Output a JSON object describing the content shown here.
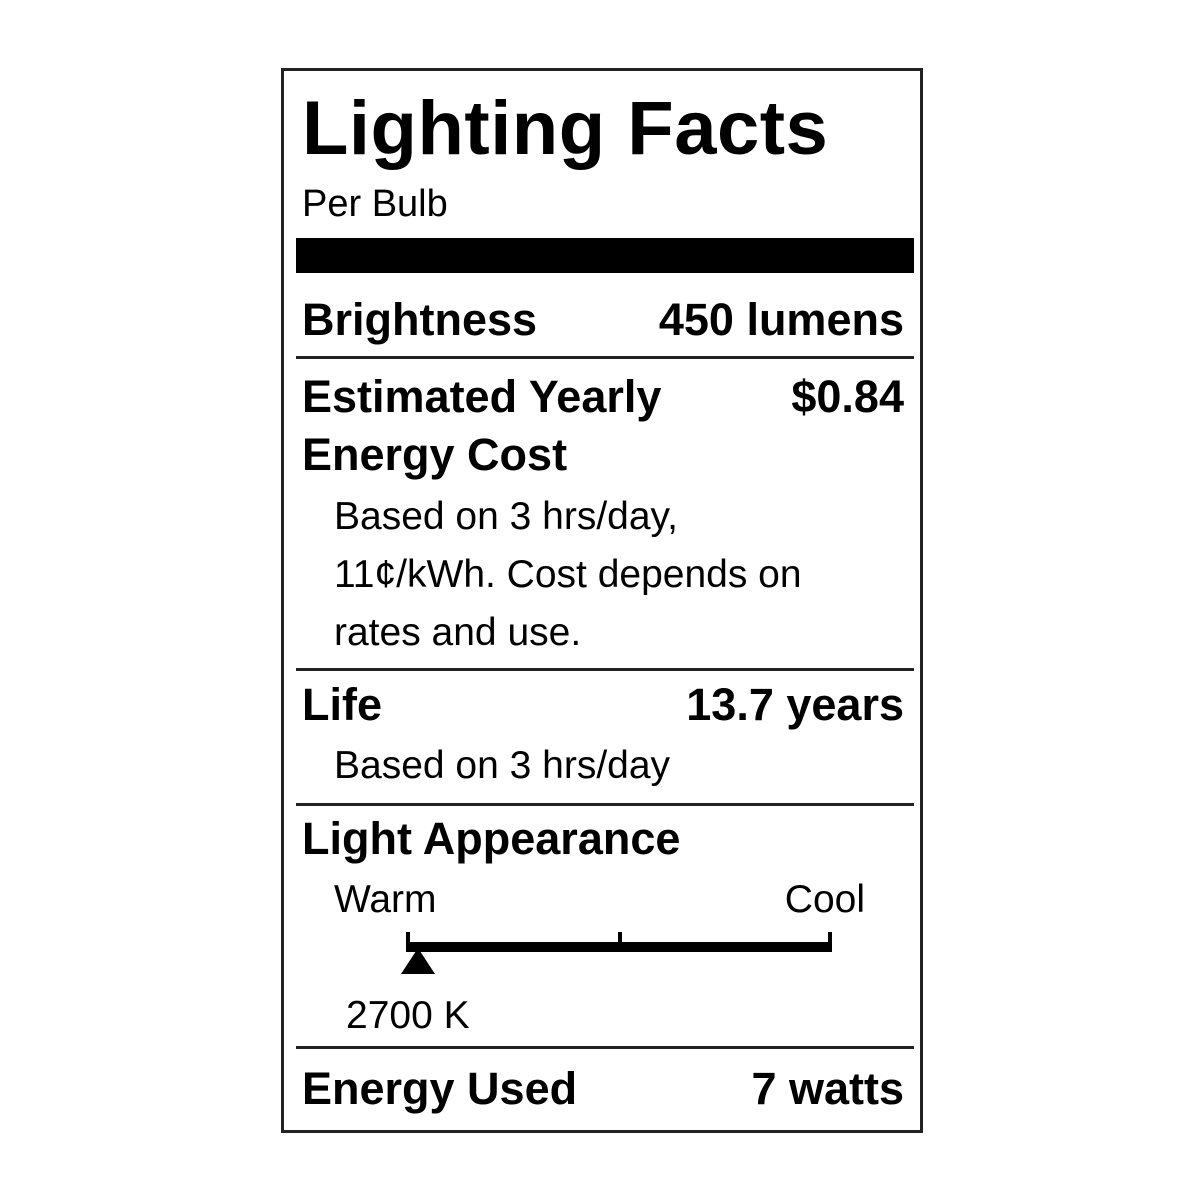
{
  "label": {
    "title": "Lighting Facts",
    "subtitle": "Per Bulb",
    "brightness": {
      "label": "Brightness",
      "value": "450 lumens"
    },
    "energy_cost": {
      "label_line1": "Estimated Yearly",
      "label_line2": "Energy Cost",
      "value": "$0.84",
      "note_line1": "Based on 3 hrs/day,",
      "note_line2": "11¢/kWh. Cost depends on",
      "note_line3": "rates and use."
    },
    "life": {
      "label": "Life",
      "value": "13.7 years",
      "note": "Based on 3 hrs/day"
    },
    "light_appearance": {
      "label": "Light Appearance",
      "warm_label": "Warm",
      "cool_label": "Cool",
      "value": "2700 K",
      "marker_position_fraction": 0
    },
    "energy_used": {
      "label": "Energy Used",
      "value": "7 watts"
    }
  }
}
